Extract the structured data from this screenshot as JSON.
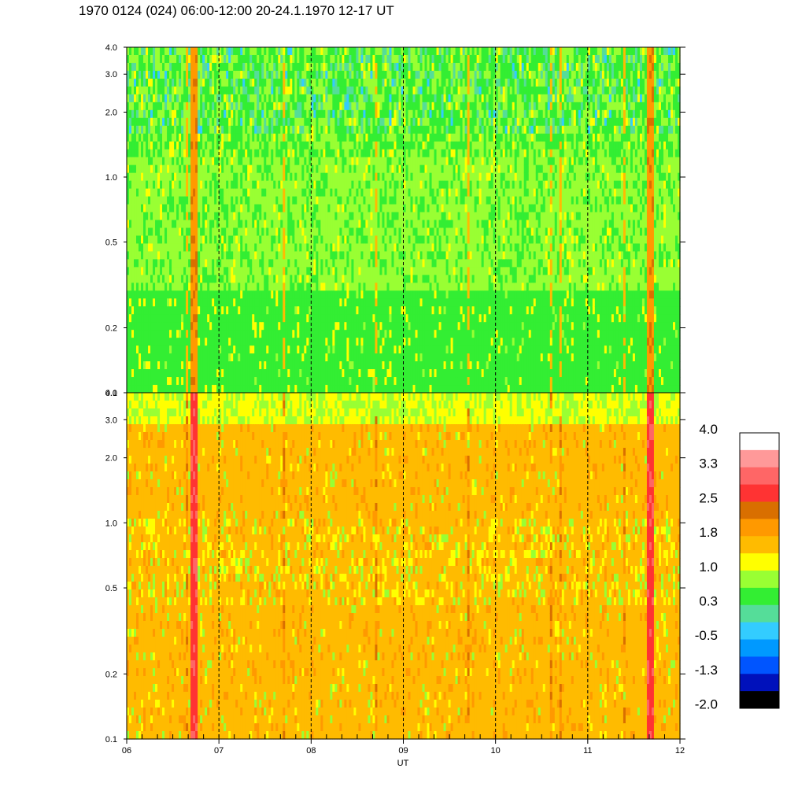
{
  "title": "1970 0124 (024) 06:00-12:00 20-24.1.1970  12-17 UT",
  "chart_data": [
    {
      "type": "heatmap",
      "panel": "top",
      "x_unit": "UT hour",
      "xlim": [
        6,
        12
      ],
      "ylim": [
        0.1,
        4.0
      ],
      "y_scale": "log",
      "y_ticks": [
        "4.0",
        "3.0",
        "2.0",
        "1.0",
        "0.5",
        "0.2",
        "0.1"
      ],
      "y_tick_values": [
        4.0,
        3.0,
        2.0,
        1.0,
        0.5,
        0.2,
        0.1
      ],
      "x_gridlines_dashed": [
        7,
        8,
        9,
        10,
        11
      ],
      "dominant_levels": "mostly 0.3 to 1.0, with bands near 1.8-2.5 at about 06.7 and 11.7 UT"
    },
    {
      "type": "heatmap",
      "panel": "bottom",
      "x_unit": "UT hour",
      "xlim": [
        6,
        12
      ],
      "ylim": [
        0.1,
        4.0
      ],
      "y_scale": "log",
      "y_ticks": [
        "4.0",
        "3.0",
        "2.0",
        "1.0",
        "0.5",
        "0.2",
        "0.1"
      ],
      "y_tick_values": [
        4.0,
        3.0,
        2.0,
        1.0,
        0.5,
        0.2,
        0.1
      ],
      "x_ticks": [
        "06",
        "07",
        "08",
        "09",
        "10",
        "11",
        "12"
      ],
      "x_tick_values": [
        6,
        7,
        8,
        9,
        10,
        11,
        12
      ],
      "xlabel": "UT",
      "x_gridlines_dashed": [
        7,
        8,
        9,
        10,
        11
      ],
      "dominant_levels": "mostly 1.0 to 2.0, with bands near 2.5-3.3 at about 06.7 and 11.7 UT"
    }
  ],
  "colorbar": {
    "labels": [
      "4.0",
      "3.3",
      "2.5",
      "1.8",
      "1.0",
      "0.3",
      "-0.5",
      "-1.3",
      "-2.0"
    ],
    "colors_top_to_bottom": [
      "#ffffff",
      "#ff9999",
      "#ff6666",
      "#ff3333",
      "#d96f00",
      "#ff9900",
      "#ffbb00",
      "#ffff00",
      "#99ff33",
      "#33ee33",
      "#55dd99",
      "#33ccff",
      "#0099ff",
      "#0055ff",
      "#0011bb",
      "#000000"
    ]
  }
}
